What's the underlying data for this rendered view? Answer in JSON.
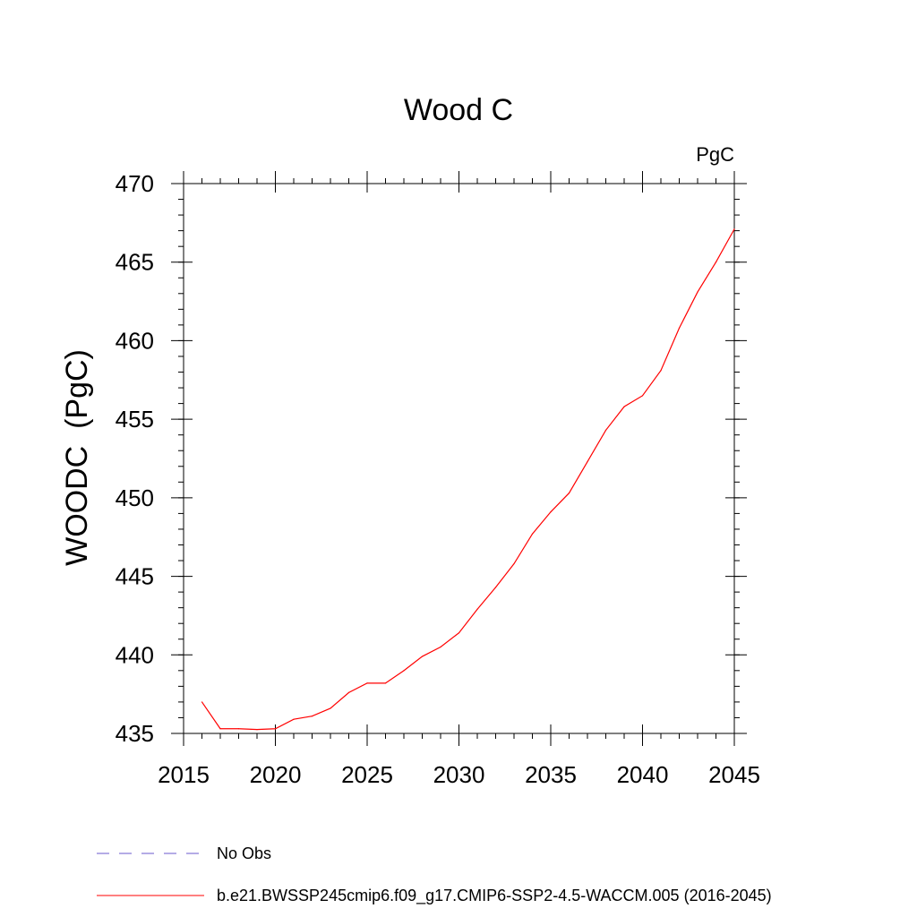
{
  "chart_data": {
    "type": "line",
    "title": "Wood C",
    "units_label": "PgC",
    "xlabel": "",
    "ylabel": "WOODC  (PgC)",
    "xlim": [
      2015,
      2045
    ],
    "ylim": [
      435,
      470
    ],
    "x_ticks": [
      2015,
      2020,
      2025,
      2030,
      2035,
      2040,
      2045
    ],
    "y_ticks": [
      435,
      440,
      445,
      450,
      455,
      460,
      465,
      470
    ],
    "x_minor_step": 1,
    "y_minor_step": 1,
    "grid": false,
    "legend_position": "bottom",
    "series": [
      {
        "name": "b.e21.BWSSP245cmip6.f09_g17.CMIP6-SSP2-4.5-WACCM.005 (2016-2045)",
        "color": "#ff0000",
        "style": "solid",
        "x": [
          2016,
          2017,
          2018,
          2019,
          2020,
          2021,
          2022,
          2023,
          2024,
          2025,
          2026,
          2027,
          2028,
          2029,
          2030,
          2031,
          2032,
          2033,
          2034,
          2035,
          2036,
          2037,
          2038,
          2039,
          2040,
          2041,
          2042,
          2043,
          2044,
          2045
        ],
        "values": [
          437.0,
          435.3,
          435.3,
          435.25,
          435.3,
          435.9,
          436.1,
          436.6,
          437.6,
          438.2,
          438.2,
          439.0,
          439.9,
          440.5,
          441.4,
          442.9,
          444.3,
          445.8,
          447.7,
          449.1,
          450.3,
          452.3,
          454.3,
          455.8,
          456.5,
          458.1,
          460.8,
          463.1,
          465.0,
          467.1
        ]
      },
      {
        "name": "No Obs",
        "color": "#6a5acd",
        "style": "dashed",
        "x": [],
        "values": []
      }
    ]
  }
}
